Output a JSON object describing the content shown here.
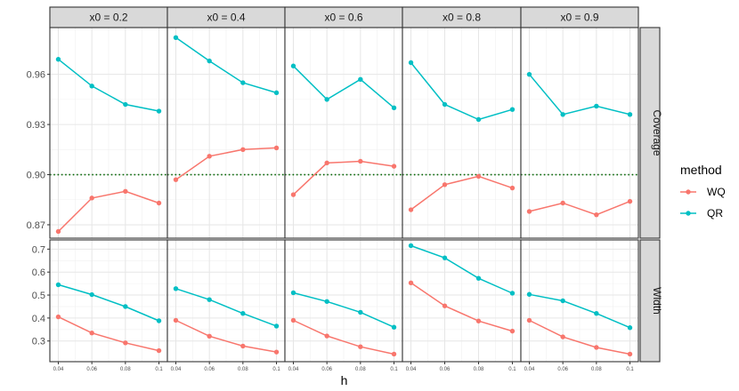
{
  "chart_data": {
    "type": "line",
    "xlabel": "h",
    "x": [
      0.04,
      0.06,
      0.08,
      0.1
    ],
    "x_tick_labels": [
      "0.04",
      "0.06",
      "0.08",
      "0.1"
    ],
    "facet_columns": [
      "x0 = 0.2",
      "x0 = 0.4",
      "x0 = 0.6",
      "x0 = 0.8",
      "x0 = 0.9"
    ],
    "facet_rows": [
      {
        "label": "Coverage",
        "ylim": [
          0.862,
          0.988
        ],
        "y_ticks": [
          0.87,
          0.9,
          0.93,
          0.96
        ],
        "y_tick_labels": [
          "0.87",
          "0.90",
          "0.93",
          "0.96"
        ],
        "reference_line": {
          "y": 0.9,
          "color": "#006400",
          "style": "dotted"
        }
      },
      {
        "label": "Width",
        "ylim": [
          0.21,
          0.74
        ],
        "y_ticks": [
          0.3,
          0.4,
          0.5,
          0.6,
          0.7
        ],
        "y_tick_labels": [
          "0.3",
          "0.4",
          "0.5",
          "0.6",
          "0.7"
        ]
      }
    ],
    "legend": {
      "title": "method",
      "position": "right"
    },
    "series": [
      {
        "name": "WQ",
        "color": "#F8766D",
        "values": {
          "Coverage": [
            [
              0.866,
              0.886,
              0.89,
              0.883
            ],
            [
              0.897,
              0.911,
              0.915,
              0.916
            ],
            [
              0.888,
              0.907,
              0.908,
              0.905
            ],
            [
              0.879,
              0.894,
              0.899,
              0.892
            ],
            [
              0.878,
              0.883,
              0.876,
              0.884
            ]
          ],
          "Width": [
            [
              0.405,
              0.335,
              0.292,
              0.258
            ],
            [
              0.39,
              0.321,
              0.278,
              0.252
            ],
            [
              0.39,
              0.322,
              0.275,
              0.243
            ],
            [
              0.553,
              0.453,
              0.387,
              0.343
            ],
            [
              0.39,
              0.318,
              0.272,
              0.243
            ]
          ]
        }
      },
      {
        "name": "QR",
        "color": "#00BFC4",
        "values": {
          "Coverage": [
            [
              0.969,
              0.953,
              0.942,
              0.938
            ],
            [
              0.982,
              0.968,
              0.955,
              0.949
            ],
            [
              0.965,
              0.945,
              0.957,
              0.94
            ],
            [
              0.967,
              0.942,
              0.933,
              0.939
            ],
            [
              0.96,
              0.936,
              0.941,
              0.936
            ]
          ],
          "Width": [
            [
              0.545,
              0.502,
              0.45,
              0.388
            ],
            [
              0.528,
              0.48,
              0.42,
              0.365
            ],
            [
              0.51,
              0.472,
              0.425,
              0.36
            ],
            [
              0.715,
              0.662,
              0.573,
              0.508
            ],
            [
              0.503,
              0.475,
              0.42,
              0.358
            ]
          ]
        }
      }
    ]
  }
}
